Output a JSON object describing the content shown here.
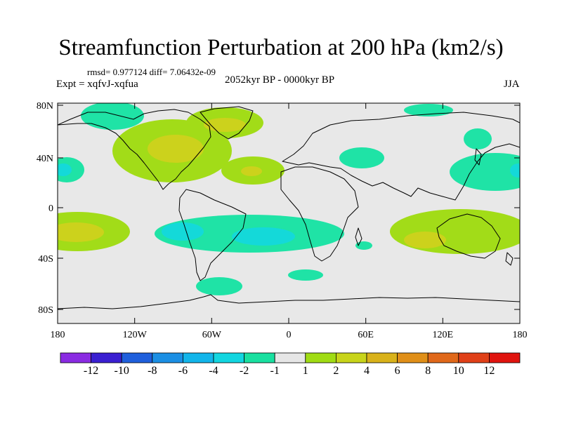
{
  "title": "Streamfunction Perturbation at 200 hPa (km2/s)",
  "stats": "rmsd= 0.977124 diff= 7.06432e-09",
  "expt": "Expt = xqfvJ-xqfua",
  "period": "2052kyr BP - 0000kyr BP",
  "season": "JJA",
  "axes": {
    "lat_labels": [
      "80N",
      "40N",
      "0",
      "40S",
      "80S"
    ],
    "lon_labels": [
      "180",
      "120W",
      "60W",
      "0",
      "60E",
      "120E",
      "180"
    ]
  },
  "colorbar": {
    "colors": [
      "#8a2be2",
      "#3a1fd1",
      "#1f5fdc",
      "#1b8fe4",
      "#12b5ea",
      "#12d6e0",
      "#19e0a0",
      "#e6e6e6",
      "#a0dc14",
      "#c8d41a",
      "#d9b21a",
      "#e08f18",
      "#e0681a",
      "#e04018",
      "#e0140e"
    ],
    "labels": [
      "-12",
      "-10",
      "-8",
      "-6",
      "-4",
      "-2",
      "-1",
      "1",
      "2",
      "4",
      "6",
      "8",
      "10",
      "12"
    ]
  },
  "field_colors": {
    "neutral": "#e8e8e8",
    "neg1": "#1fe3a6",
    "neg2": "#14d9d9",
    "pos1": "#a2dc18",
    "pos2": "#ccd21c"
  }
}
